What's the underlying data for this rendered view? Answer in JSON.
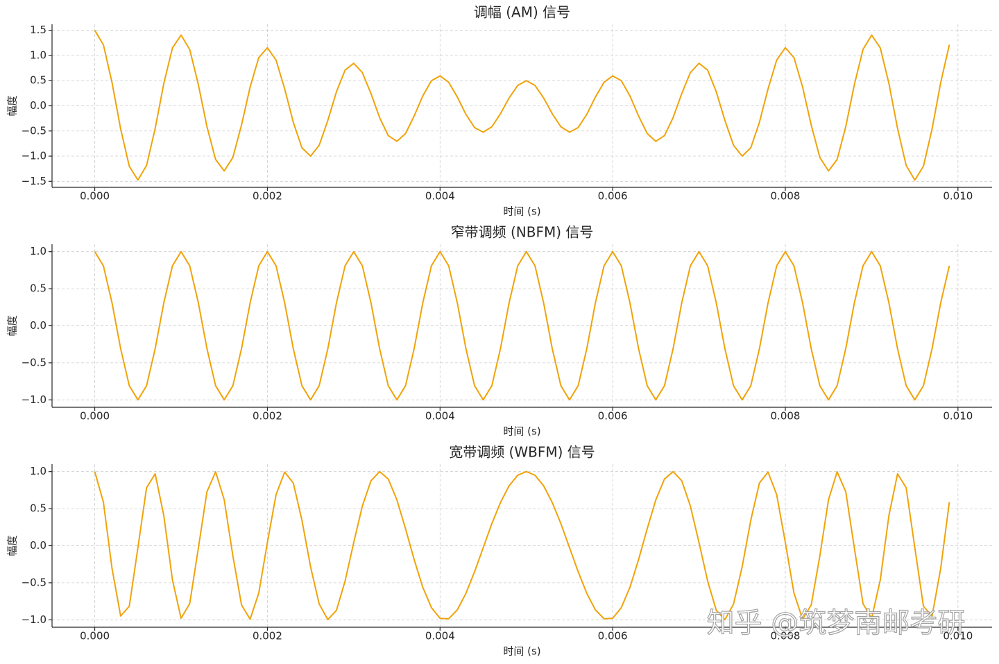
{
  "chart_data": [
    {
      "type": "line",
      "title": "调幅 (AM) 信号",
      "xlabel": "时间 (s)",
      "ylabel": "幅度",
      "color": "#f0a30a",
      "grid": true,
      "xlim": [
        -0.000495,
        0.010395
      ],
      "ylim": [
        -1.62,
        1.62
      ],
      "xticks": [
        {
          "value": 0,
          "label": "0.000"
        },
        {
          "value": 0.002,
          "label": "0.002"
        },
        {
          "value": 0.004,
          "label": "0.004"
        },
        {
          "value": 0.006,
          "label": "0.006"
        },
        {
          "value": 0.008,
          "label": "0.008"
        },
        {
          "value": 0.01,
          "label": "0.010"
        }
      ],
      "yticks": [
        {
          "value": -1.5,
          "label": "−1.5"
        },
        {
          "value": -1,
          "label": "−1.0"
        },
        {
          "value": -0.5,
          "label": "−0.5"
        },
        {
          "value": 0,
          "label": "0.0"
        },
        0.5,
        {
          "value": 1,
          "label": "1.0"
        },
        1.5
      ],
      "x": [
        0,
        0.0001,
        0.0002,
        0.0003,
        0.0004,
        0.0005,
        0.0006,
        0.0007,
        0.0008,
        0.0009,
        0.001,
        0.0011,
        0.0012,
        0.0013,
        0.0014,
        0.0015,
        0.0016,
        0.0017,
        0.0018,
        0.0019,
        0.002,
        0.0021,
        0.0022,
        0.0023,
        0.0024,
        0.0025,
        0.0026,
        0.0027,
        0.0028,
        0.0029,
        0.003,
        0.0031,
        0.0032,
        0.0033,
        0.0034,
        0.0035,
        0.0036,
        0.0037,
        0.0038,
        0.0039,
        0.004,
        0.0041,
        0.0042,
        0.0043,
        0.0044,
        0.0045,
        0.0046,
        0.0047,
        0.0048,
        0.0049,
        0.005,
        0.0051,
        0.0052,
        0.0053,
        0.0054,
        0.0055,
        0.0056,
        0.0057,
        0.0058,
        0.0059,
        0.006,
        0.0061,
        0.0062,
        0.0063,
        0.0064,
        0.0065,
        0.0066,
        0.0067,
        0.0068,
        0.0069,
        0.007,
        0.0071,
        0.0072,
        0.0073,
        0.0074,
        0.0075,
        0.0076,
        0.0077,
        0.0078,
        0.0079,
        0.008,
        0.0081,
        0.0082,
        0.0083,
        0.0084,
        0.0085,
        0.0086,
        0.0087,
        0.0088,
        0.0089,
        0.009,
        0.0091,
        0.0092,
        0.0093,
        0.0094,
        0.0095,
        0.0096,
        0.0097,
        0.0098,
        0.0099
      ],
      "values": [
        1.5,
        1.213,
        0.462,
        -0.461,
        -1.201,
        -1.476,
        -1.185,
        -0.449,
        0.444,
        1.15,
        1.405,
        1.12,
        0.422,
        -0.415,
        -1.067,
        -1.294,
        -1.026,
        -0.383,
        0.375,
        0.958,
        1.155,
        0.909,
        0.338,
        -0.328,
        -0.834,
        -1.0,
        -0.784,
        -0.29,
        0.28,
        0.709,
        0.845,
        0.66,
        0.243,
        -0.235,
        -0.592,
        -0.706,
        -0.551,
        -0.203,
        0.196,
        0.498,
        0.595,
        0.468,
        0.174,
        -0.169,
        -0.433,
        -0.524,
        -0.417,
        -0.157,
        0.156,
        0.405,
        0.5,
        0.405,
        0.156,
        -0.157,
        -0.417,
        -0.524,
        -0.433,
        -0.169,
        0.174,
        0.468,
        0.595,
        0.498,
        0.196,
        -0.203,
        -0.551,
        -0.706,
        -0.592,
        -0.235,
        0.243,
        0.66,
        0.845,
        0.709,
        0.28,
        -0.29,
        -0.784,
        -1.0,
        -0.834,
        -0.328,
        0.338,
        0.909,
        1.155,
        0.958,
        0.375,
        -0.383,
        -1.026,
        -1.294,
        -1.067,
        -0.415,
        0.422,
        1.12,
        1.405,
        1.15,
        0.444,
        -0.449,
        -1.185,
        -1.476,
        -1.201,
        -0.461,
        0.462,
        1.213
      ]
    },
    {
      "type": "line",
      "title": "窄带调频 (NBFM) 信号",
      "xlabel": "时间 (s)",
      "ylabel": "幅度",
      "color": "#f0a30a",
      "grid": true,
      "xlim": [
        -0.000495,
        0.010395
      ],
      "ylim": [
        -1.1,
        1.1
      ],
      "xticks": [
        {
          "value": 0,
          "label": "0.000"
        },
        {
          "value": 0.002,
          "label": "0.002"
        },
        {
          "value": 0.004,
          "label": "0.004"
        },
        {
          "value": 0.006,
          "label": "0.006"
        },
        {
          "value": 0.008,
          "label": "0.008"
        },
        {
          "value": 0.01,
          "label": "0.010"
        }
      ],
      "yticks": [
        {
          "value": -1,
          "label": "−1.0"
        },
        {
          "value": -0.5,
          "label": "−0.5"
        },
        {
          "value": 0,
          "label": "0.0"
        },
        0.5,
        {
          "value": 1,
          "label": "1.0"
        }
      ],
      "x": [
        0,
        0.0001,
        0.0002,
        0.0003,
        0.0004,
        0.0005,
        0.0006,
        0.0007,
        0.0008,
        0.0009,
        0.001,
        0.0011,
        0.0012,
        0.0013,
        0.0014,
        0.0015,
        0.0016,
        0.0017,
        0.0018,
        0.0019,
        0.002,
        0.0021,
        0.0022,
        0.0023,
        0.0024,
        0.0025,
        0.0026,
        0.0027,
        0.0028,
        0.0029,
        0.003,
        0.0031,
        0.0032,
        0.0033,
        0.0034,
        0.0035,
        0.0036,
        0.0037,
        0.0038,
        0.0039,
        0.004,
        0.0041,
        0.0042,
        0.0043,
        0.0044,
        0.0045,
        0.0046,
        0.0047,
        0.0048,
        0.0049,
        0.005,
        0.0051,
        0.0052,
        0.0053,
        0.0054,
        0.0055,
        0.0056,
        0.0057,
        0.0058,
        0.0059,
        0.006,
        0.0061,
        0.0062,
        0.0063,
        0.0064,
        0.0065,
        0.0066,
        0.0067,
        0.0068,
        0.0069,
        0.007,
        0.0071,
        0.0072,
        0.0073,
        0.0074,
        0.0075,
        0.0076,
        0.0077,
        0.0078,
        0.0079,
        0.008,
        0.0081,
        0.0082,
        0.0083,
        0.0084,
        0.0085,
        0.0086,
        0.0087,
        0.0088,
        0.0089,
        0.009,
        0.0091,
        0.0092,
        0.0093,
        0.0094,
        0.0095,
        0.0096,
        0.0097,
        0.0098,
        0.0099
      ],
      "values": [
        1,
        0.809,
        0.309,
        -0.309,
        -0.809,
        -1,
        -0.809,
        -0.309,
        0.309,
        0.809,
        1,
        0.809,
        0.309,
        -0.309,
        -0.809,
        -1,
        -0.809,
        -0.309,
        0.309,
        0.809,
        1,
        0.809,
        0.309,
        -0.309,
        -0.809,
        -1,
        -0.809,
        -0.309,
        0.309,
        0.809,
        1,
        0.809,
        0.309,
        -0.309,
        -0.809,
        -1,
        -0.809,
        -0.309,
        0.309,
        0.809,
        1,
        0.809,
        0.309,
        -0.309,
        -0.809,
        -1,
        -0.809,
        -0.309,
        0.309,
        0.809,
        1,
        0.809,
        0.309,
        -0.309,
        -0.809,
        -1,
        -0.809,
        -0.309,
        0.309,
        0.809,
        1,
        0.809,
        0.309,
        -0.309,
        -0.809,
        -1,
        -0.809,
        -0.309,
        0.309,
        0.809,
        1,
        0.809,
        0.309,
        -0.309,
        -0.809,
        -1,
        -0.809,
        -0.309,
        0.309,
        0.809,
        1,
        0.809,
        0.309,
        -0.309,
        -0.809,
        -1,
        -0.809,
        -0.309,
        0.309,
        0.809,
        1,
        0.809,
        0.309,
        -0.309,
        -0.809,
        -1,
        -0.809,
        -0.309,
        0.309,
        0.809
      ]
    },
    {
      "type": "line",
      "title": "宽带调频 (WBFM) 信号",
      "xlabel": "时间 (s)",
      "ylabel": "幅度",
      "color": "#f0a30a",
      "grid": true,
      "xlim": [
        -0.000495,
        0.010395
      ],
      "ylim": [
        -1.1,
        1.1
      ],
      "xticks": [
        {
          "value": 0,
          "label": "0.000"
        },
        {
          "value": 0.002,
          "label": "0.002"
        },
        {
          "value": 0.004,
          "label": "0.004"
        },
        {
          "value": 0.006,
          "label": "0.006"
        },
        {
          "value": 0.008,
          "label": "0.008"
        },
        {
          "value": 0.01,
          "label": "0.010"
        }
      ],
      "yticks": [
        {
          "value": -1,
          "label": "−1.0"
        },
        {
          "value": -0.5,
          "label": "−0.5"
        },
        {
          "value": 0,
          "label": "0.0"
        },
        0.5,
        {
          "value": 1,
          "label": "1.0"
        }
      ],
      "x": [
        0,
        0.0001,
        0.0002,
        0.0003,
        0.0004,
        0.0005,
        0.0006,
        0.0007,
        0.0008,
        0.0009,
        0.001,
        0.0011,
        0.0012,
        0.0013,
        0.0014,
        0.0015,
        0.0016,
        0.0017,
        0.0018,
        0.0019,
        0.002,
        0.0021,
        0.0022,
        0.0023,
        0.0024,
        0.0025,
        0.0026,
        0.0027,
        0.0028,
        0.0029,
        0.003,
        0.0031,
        0.0032,
        0.0033,
        0.0034,
        0.0035,
        0.0036,
        0.0037,
        0.0038,
        0.0039,
        0.004,
        0.0041,
        0.0042,
        0.0043,
        0.0044,
        0.0045,
        0.0046,
        0.0047,
        0.0048,
        0.0049,
        0.005,
        0.0051,
        0.0052,
        0.0053,
        0.0054,
        0.0055,
        0.0056,
        0.0057,
        0.0058,
        0.0059,
        0.006,
        0.0061,
        0.0062,
        0.0063,
        0.0064,
        0.0065,
        0.0066,
        0.0067,
        0.0068,
        0.0069,
        0.007,
        0.0071,
        0.0072,
        0.0073,
        0.0074,
        0.0075,
        0.0076,
        0.0077,
        0.0078,
        0.0079,
        0.008,
        0.0081,
        0.0082,
        0.0083,
        0.0084,
        0.0085,
        0.0086,
        0.0087,
        0.0088,
        0.0089,
        0.009,
        0.0091,
        0.0092,
        0.0093,
        0.0094,
        0.0095,
        0.0096,
        0.0097,
        0.0098,
        0.0099
      ],
      "values": [
        1.0,
        0.588,
        -0.307,
        -0.949,
        -0.817,
        -0.026,
        0.782,
        0.97,
        0.406,
        -0.462,
        -0.98,
        -0.782,
        -0.033,
        0.729,
        0.997,
        0.619,
        -0.137,
        -0.799,
        -0.992,
        -0.638,
        0.043,
        0.688,
        0.993,
        0.846,
        0.344,
        -0.284,
        -0.787,
        -0.998,
        -0.871,
        -0.477,
        0.043,
        0.535,
        0.876,
        1.0,
        0.9,
        0.619,
        0.23,
        -0.188,
        -0.561,
        -0.835,
        -0.98,
        -0.986,
        -0.866,
        -0.643,
        -0.351,
        -0.026,
        0.297,
        0.583,
        0.808,
        0.951,
        1.0,
        0.951,
        0.808,
        0.583,
        0.297,
        -0.026,
        -0.351,
        -0.643,
        -0.866,
        -0.986,
        -0.98,
        -0.835,
        -0.561,
        -0.188,
        0.23,
        0.619,
        0.9,
        1.0,
        0.876,
        0.535,
        0.043,
        -0.477,
        -0.871,
        -0.998,
        -0.787,
        -0.284,
        0.344,
        0.846,
        0.993,
        0.688,
        0.043,
        -0.638,
        -0.992,
        -0.799,
        -0.137,
        0.619,
        0.997,
        0.729,
        -0.033,
        -0.782,
        -0.98,
        -0.462,
        0.406,
        0.97,
        0.782,
        -0.026,
        -0.817,
        -0.949,
        -0.307,
        0.588
      ]
    }
  ],
  "watermark": "知乎 @筑梦南邮考研"
}
